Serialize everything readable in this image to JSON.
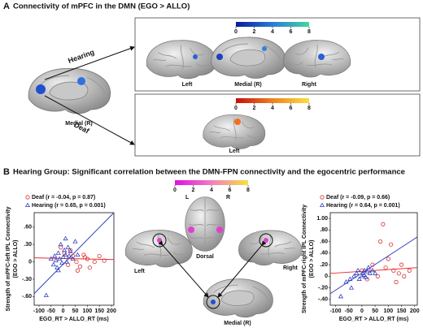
{
  "panel_a": {
    "label": "A",
    "title": "Connectivity of mPFC in the DMN (EGO > ALLO)",
    "seed_view": "Medial (R)",
    "hearing": {
      "label": "Hearing",
      "colorbar_ticks": [
        0,
        2,
        4,
        6,
        8
      ],
      "views": [
        "Left",
        "Medial (R)",
        "Right"
      ]
    },
    "deaf": {
      "label": "Deaf",
      "colorbar_ticks": [
        0,
        2,
        4,
        6,
        8
      ],
      "views": [
        "Left"
      ]
    }
  },
  "panel_b": {
    "label": "B",
    "title": "Hearing Group: Significant correlation between the DMN-FPN connectivity and the egocentric performance",
    "colorbar_ticks": [
      0,
      2,
      4,
      6,
      8
    ],
    "dorsal_left": "L",
    "dorsal_right": "R",
    "views": [
      "Dorsal",
      "Left",
      "Right",
      "Medial (R)"
    ]
  },
  "chart_data": [
    {
      "type": "scatter",
      "ylabel": "Strength of mPFC-left IPL Connectivity",
      "ylabel2": "(EGO > ALLO)",
      "xlabel": "EGO_RT > ALLO_RT (ms)",
      "xlim": [
        -120,
        210
      ],
      "ylim": [
        -0.75,
        0.85
      ],
      "xticks": [
        -100,
        -50,
        0,
        50,
        100,
        150,
        200
      ],
      "yticks": [
        {
          "value": 0.6,
          "label": ".60"
        },
        {
          "value": 0.3,
          "label": ".30"
        },
        0,
        {
          "value": -0.3,
          "label": "-.30"
        },
        {
          "value": -0.6,
          "label": "-.60"
        }
      ],
      "legend": "upper left",
      "series": [
        {
          "name": "Deaf (r = -0.04, p = 0.87)",
          "color": "#e03030",
          "marker": "circle",
          "x": [
            -10,
            5,
            20,
            40,
            55,
            70,
            85,
            100,
            110,
            130,
            150,
            170,
            30,
            60,
            90
          ],
          "values": [
            0.25,
            0.15,
            -0.05,
            0.1,
            0.0,
            -0.08,
            0.12,
            0.05,
            -0.1,
            0.0,
            0.1,
            0.02,
            0.2,
            -0.15,
            0.08
          ]
        },
        {
          "name": "Hearing (r = 0.65, p = 0.001)",
          "color": "#3040c0",
          "marker": "triangle",
          "x": [
            -70,
            -40,
            -35,
            -30,
            -25,
            -20,
            -15,
            -10,
            -5,
            0,
            5,
            10,
            15,
            20,
            25,
            30,
            40,
            50,
            60,
            -50,
            -20,
            10
          ],
          "values": [
            -0.58,
            -0.05,
            0.1,
            0.02,
            -0.1,
            0.15,
            0.05,
            0.3,
            -0.02,
            0.08,
            0.2,
            0.12,
            0.0,
            0.25,
            0.1,
            0.18,
            0.05,
            0.35,
            0.12,
            0.05,
            -0.15,
            0.4
          ]
        }
      ],
      "fits": [
        {
          "color": "#e03030",
          "x": [
            -120,
            210
          ],
          "values": [
            0.07,
            0.04
          ]
        },
        {
          "color": "#3040c0",
          "x": [
            -120,
            210
          ],
          "values": [
            -0.55,
            0.85
          ]
        }
      ]
    },
    {
      "type": "scatter",
      "ylabel": "Strength of mPFC-right IPL Connectivity",
      "ylabel2": "(EGO > ALLO)",
      "xlabel": "EGO_RT > ALLO_RT (ms)",
      "xlim": [
        -120,
        210
      ],
      "ylim": [
        -0.5,
        1.1
      ],
      "xticks": [
        -100,
        -50,
        0,
        50,
        100,
        150,
        200
      ],
      "yticks": [
        {
          "value": 1.0,
          "label": "1.00"
        },
        {
          "value": 0.8,
          "label": ".80"
        },
        {
          "value": 0.6,
          "label": ".60"
        },
        {
          "value": 0.4,
          "label": ".40"
        },
        {
          "value": 0.2,
          "label": ".20"
        },
        0,
        {
          "value": -0.2,
          "label": "-.20"
        },
        {
          "value": -0.4,
          "label": "-.40"
        }
      ],
      "legend": "upper left",
      "series": [
        {
          "name": "Deaf (r = -0.09, p = 0.66)",
          "color": "#e03030",
          "marker": "circle",
          "x": [
            0,
            20,
            40,
            60,
            80,
            100,
            110,
            120,
            140,
            160,
            180,
            70,
            90,
            130,
            150
          ],
          "values": [
            0.1,
            -0.05,
            0.2,
            0.0,
            0.9,
            0.3,
            0.55,
            0.1,
            0.05,
            0.0,
            0.1,
            0.6,
            0.15,
            -0.1,
            0.2
          ]
        },
        {
          "name": "Hearing (r = 0.64, p = 0.001)",
          "color": "#3040c0",
          "marker": "triangle",
          "x": [
            -80,
            -60,
            -45,
            -30,
            -20,
            -10,
            0,
            5,
            10,
            15,
            20,
            25,
            30,
            -40,
            -15,
            8,
            40,
            50
          ],
          "values": [
            -0.35,
            -0.1,
            -0.05,
            0.0,
            0.05,
            -0.05,
            0.0,
            0.05,
            0.1,
            -0.02,
            0.08,
            0.15,
            0.05,
            -0.2,
            0.1,
            0.02,
            0.1,
            0.05
          ]
        }
      ],
      "fits": [
        {
          "color": "#e03030",
          "x": [
            -120,
            210
          ],
          "values": [
            0.05,
            0.15
          ]
        },
        {
          "color": "#3040c0",
          "x": [
            -120,
            210
          ],
          "values": [
            -0.3,
            0.68
          ]
        }
      ]
    }
  ]
}
